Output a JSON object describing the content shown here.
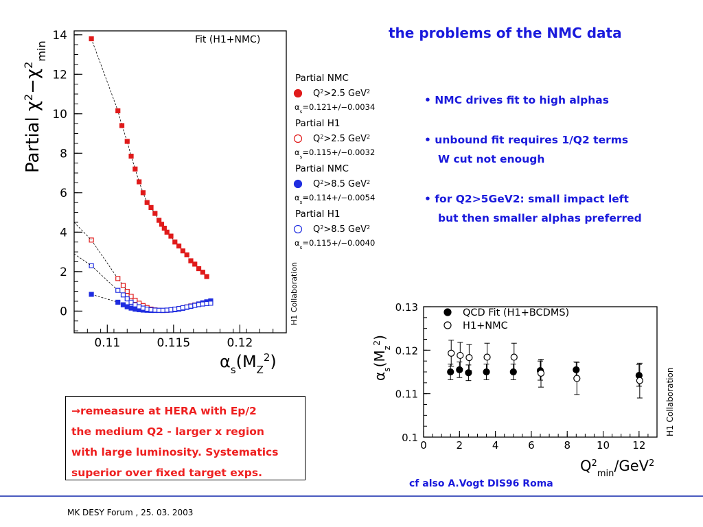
{
  "slide": {
    "title": "the problems of the NMC data",
    "bullets": [
      {
        "lines": [
          "• NMC drives fit to high alphas"
        ]
      },
      {
        "lines": [
          "• unbound fit  requires 1/Q2 terms",
          "W cut not enough"
        ]
      },
      {
        "lines": [
          "• for Q2>5GeV2: small impact left",
          "but then smaller alphas preferred"
        ]
      }
    ],
    "note_lines": [
      "→remeasure at HERA with Ep/2",
      "the medium Q2 - larger x region",
      "with large luminosity. Systematics",
      "superior over fixed target exps."
    ],
    "cite": "cf also A.Vogt DIS96 Roma",
    "footer": "MK DESY Forum , 25. 03. 2003",
    "colors": {
      "title": "#1a1adc",
      "note": "#ee2020",
      "red_series": "#e01a1a",
      "blue_series": "#1f2de0"
    }
  },
  "chart_data": [
    {
      "type": "scatter",
      "title": "Fit (H1+NMC)",
      "ylabel_parts": [
        "Partial ",
        "χ",
        "2",
        "−",
        "χ",
        "2",
        "min"
      ],
      "xlabel_parts": [
        "α",
        "s",
        "(M",
        "Z",
        "2",
        ")"
      ],
      "xlim": [
        0.1075,
        0.1235
      ],
      "ylim": [
        -1.1,
        14.2
      ],
      "xticks": [
        0.11,
        0.115,
        0.12
      ],
      "xtick_labels": [
        "0.11",
        "0.115",
        "0.12"
      ],
      "yticks": [
        0,
        2,
        4,
        6,
        8,
        10,
        12,
        14
      ],
      "ytick_labels": [
        "0",
        "2",
        "4",
        "6",
        "8",
        "10",
        "12",
        "14"
      ],
      "side_label": "H1 Collaboration",
      "legend": [
        {
          "group": "Partial NMC",
          "marker": "filled",
          "color": "#e01a1a",
          "cut": [
            "Q",
            "2",
            ">2.5 GeV",
            "2"
          ],
          "alpha_text": "=0.121+/−0.0034"
        },
        {
          "group": "Partial H1",
          "marker": "open",
          "color": "#e01a1a",
          "cut": [
            "Q",
            "2",
            ">2.5 GeV",
            "2"
          ],
          "alpha_text": "=0.115+/−0.0032"
        },
        {
          "group": "Partial NMC",
          "marker": "filled",
          "color": "#1f2de0",
          "cut": [
            "Q",
            "2",
            ">8.5 GeV",
            "2"
          ],
          "alpha_text": "=0.114+/−0.0054"
        },
        {
          "group": "Partial H1",
          "marker": "open",
          "color": "#1f2de0",
          "cut": [
            "Q",
            "2",
            ">8.5 GeV",
            "2"
          ],
          "alpha_text": "=0.115+/−0.0040"
        }
      ],
      "alpha_symbol": [
        "α",
        "s"
      ],
      "series": [
        {
          "marker": "filled",
          "color": "#e01a1a",
          "x": [
            0.1088,
            0.1108,
            0.1111,
            0.1115,
            0.1118,
            0.1121,
            0.1124,
            0.1127,
            0.113,
            0.1133,
            0.1136,
            0.1139,
            0.1141,
            0.1143,
            0.1145,
            0.1148,
            0.1151,
            0.1154,
            0.1157,
            0.116,
            0.1163,
            0.1166,
            0.1169,
            0.1172,
            0.1175
          ],
          "y": [
            13.8,
            10.15,
            9.4,
            8.6,
            7.85,
            7.2,
            6.55,
            6.0,
            5.5,
            5.25,
            4.95,
            4.6,
            4.4,
            4.2,
            4.0,
            3.8,
            3.5,
            3.3,
            3.05,
            2.85,
            2.55,
            2.38,
            2.15,
            1.97,
            1.75
          ]
        },
        {
          "marker": "open",
          "color": "#e01a1a",
          "x": [
            0.1088,
            0.1108,
            0.1112,
            0.1115,
            0.1118,
            0.1121,
            0.1124,
            0.1127,
            0.113,
            0.1133,
            0.1136,
            0.1139,
            0.1142,
            0.1145,
            0.1148,
            0.1151,
            0.1154,
            0.1157,
            0.116,
            0.1163,
            0.1166,
            0.1169,
            0.1172,
            0.1175,
            0.1178
          ],
          "y": [
            3.6,
            1.65,
            1.3,
            1.0,
            0.75,
            0.55,
            0.4,
            0.28,
            0.18,
            0.1,
            0.06,
            0.04,
            0.03,
            0.04,
            0.06,
            0.09,
            0.13,
            0.17,
            0.21,
            0.26,
            0.31,
            0.36,
            0.41,
            0.44,
            0.48
          ]
        },
        {
          "marker": "filled",
          "color": "#1f2de0",
          "x": [
            0.1088,
            0.1108,
            0.1112,
            0.1115,
            0.1118,
            0.1121,
            0.1124,
            0.1127,
            0.113,
            0.1133,
            0.1136,
            0.1139,
            0.1142,
            0.1145,
            0.1148,
            0.1151,
            0.1154,
            0.1157,
            0.116,
            0.1163,
            0.1166,
            0.1169,
            0.1172,
            0.1175,
            0.1178
          ],
          "y": [
            0.85,
            0.45,
            0.32,
            0.22,
            0.15,
            0.1,
            0.07,
            0.05,
            0.04,
            0.03,
            0.03,
            0.03,
            0.03,
            0.04,
            0.05,
            0.07,
            0.1,
            0.14,
            0.19,
            0.24,
            0.3,
            0.36,
            0.42,
            0.47,
            0.52
          ]
        },
        {
          "marker": "open",
          "color": "#1f2de0",
          "x": [
            0.1088,
            0.1108,
            0.1112,
            0.1115,
            0.1118,
            0.1121,
            0.1124,
            0.1127,
            0.113,
            0.1133,
            0.1136,
            0.1139,
            0.1142,
            0.1145,
            0.1148,
            0.1151,
            0.1154,
            0.1157,
            0.116,
            0.1163,
            0.1166,
            0.1169,
            0.1172,
            0.1175,
            0.1178
          ],
          "y": [
            2.3,
            1.05,
            0.82,
            0.62,
            0.45,
            0.32,
            0.22,
            0.15,
            0.1,
            0.07,
            0.05,
            0.04,
            0.04,
            0.05,
            0.07,
            0.1,
            0.13,
            0.17,
            0.21,
            0.25,
            0.29,
            0.33,
            0.36,
            0.38,
            0.4
          ]
        }
      ]
    },
    {
      "type": "scatter",
      "title": "",
      "xlabel_parts": [
        "Q",
        "2",
        "min",
        "/GeV",
        "2"
      ],
      "ylabel_parts": [
        "α",
        "s",
        "(M",
        "z",
        "2",
        ")"
      ],
      "xlim": [
        0,
        13
      ],
      "ylim": [
        0.1,
        0.13
      ],
      "xticks": [
        0,
        2,
        4,
        6,
        8,
        10,
        12
      ],
      "xtick_labels": [
        "0",
        "2",
        "4",
        "6",
        "8",
        "10",
        "12"
      ],
      "yticks": [
        0.1,
        0.11,
        0.12,
        0.13
      ],
      "ytick_labels": [
        "0.1",
        "0.11",
        "0.12",
        "0.13"
      ],
      "side_label": "H1 Collaboration",
      "legend": [
        {
          "label": "QCD Fit (H1+BCDMS)",
          "marker": "filled"
        },
        {
          "label": "H1+NMC",
          "marker": "open"
        }
      ],
      "series": [
        {
          "marker": "filled",
          "x": [
            1.5,
            2.0,
            2.5,
            3.5,
            5.0,
            6.5,
            8.5,
            12.0
          ],
          "y": [
            0.115,
            0.1155,
            0.1148,
            0.115,
            0.115,
            0.1153,
            0.1155,
            0.1142
          ],
          "err": [
            0.0018,
            0.0018,
            0.0018,
            0.0018,
            0.0018,
            0.0022,
            0.0018,
            0.0025
          ]
        },
        {
          "marker": "open",
          "x": [
            1.5,
            2.0,
            2.5,
            3.5,
            5.0,
            6.5,
            8.5,
            12.0
          ],
          "y": [
            0.1193,
            0.1188,
            0.1183,
            0.1184,
            0.1184,
            0.1147,
            0.1135,
            0.113
          ],
          "err": [
            0.003,
            0.003,
            0.003,
            0.0032,
            0.0032,
            0.0032,
            0.0037,
            0.004
          ]
        }
      ]
    }
  ]
}
